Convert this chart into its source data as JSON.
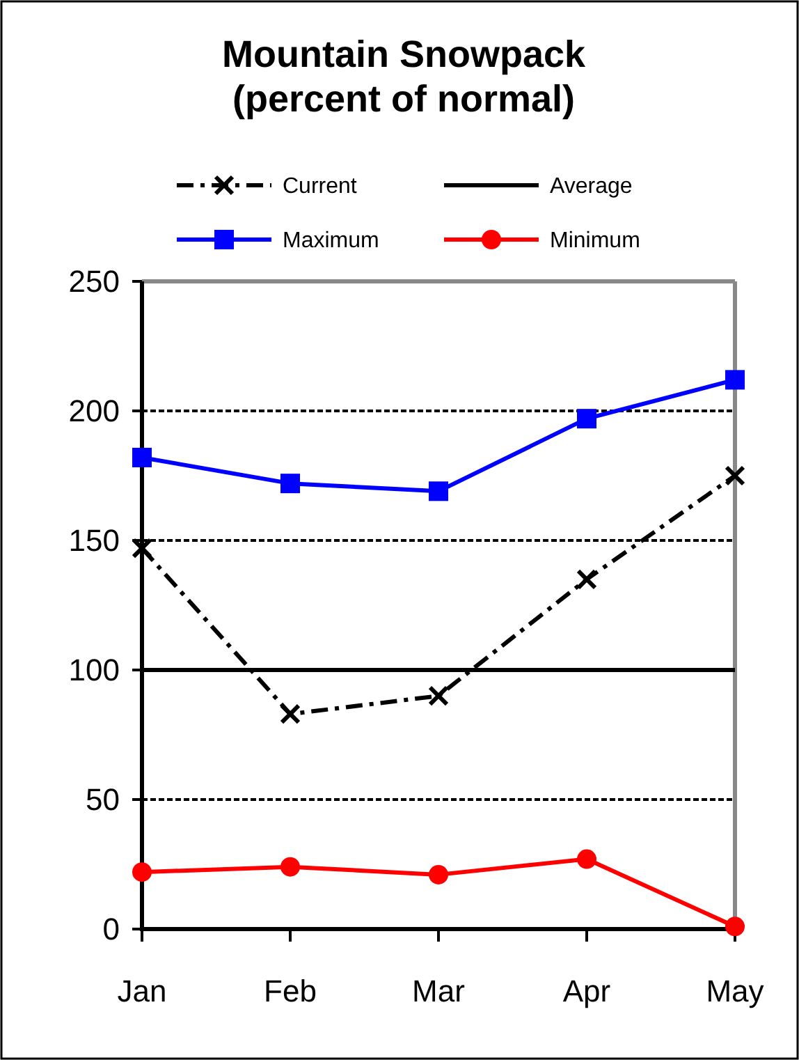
{
  "chart_data": {
    "type": "line",
    "title": "Mountain Snowpack\n(percent of normal)",
    "categories": [
      "Jan",
      "Feb",
      "Mar",
      "Apr",
      "May"
    ],
    "ylim": [
      0,
      250
    ],
    "yticks": [
      0,
      50,
      100,
      150,
      200,
      250
    ],
    "grid": "y",
    "legend": "top",
    "series": [
      {
        "name": "Current",
        "color": "#000000",
        "values": [
          147,
          83,
          90,
          135,
          175
        ],
        "marker": "cross",
        "line_style": "dashed"
      },
      {
        "name": "Average",
        "color": "#000000",
        "values": [
          100,
          100,
          100,
          100,
          100
        ],
        "marker": "none",
        "line_style": "solid"
      },
      {
        "name": "Maximum",
        "color": "#0000ff",
        "values": [
          182,
          172,
          169,
          197,
          212
        ],
        "marker": "square",
        "line_style": "solid"
      },
      {
        "name": "Minimum",
        "color": "#ff0000",
        "values": [
          22,
          24,
          21,
          27,
          1
        ],
        "marker": "circle",
        "line_style": "solid"
      }
    ]
  }
}
